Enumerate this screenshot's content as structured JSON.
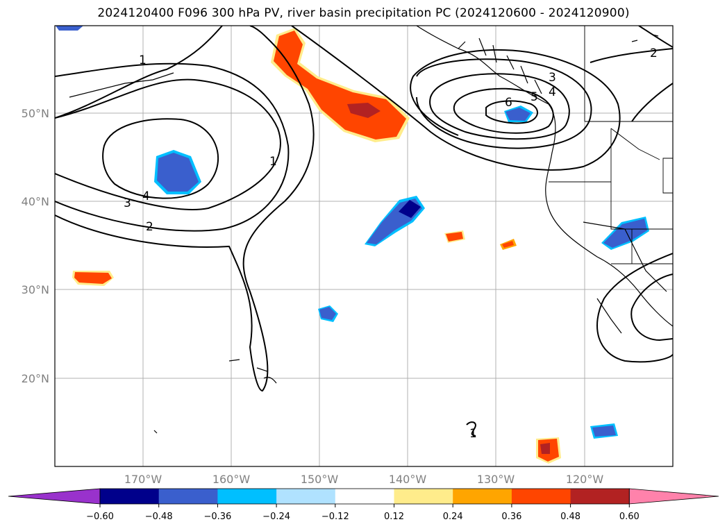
{
  "title": "2024120400 F096 300 hPa PV, river basin precipitation PC (2024120600 - 2024120900)",
  "lat_labels": [
    "50°N",
    "40°N",
    "30°N",
    "20°N"
  ],
  "lon_labels": [
    "170°W",
    "160°W",
    "150°W",
    "140°W",
    "130°W",
    "120°W"
  ],
  "contour_labels": [
    "1",
    "2",
    "3",
    "4",
    "2",
    "3",
    "4",
    "5",
    "6",
    "1",
    "1"
  ],
  "colorbar": {
    "ticks": [
      "−0.60",
      "−0.48",
      "−0.36",
      "−0.24",
      "−0.12",
      "0.12",
      "0.24",
      "0.36",
      "0.48",
      "0.60"
    ],
    "colors": [
      "#9932cc",
      "#00008b",
      "#3a5fcd",
      "#00bfff",
      "#b0e2ff",
      "#ffffff",
      "#ffec8b",
      "#ffa500",
      "#ff4500",
      "#b22222",
      "#ff82ab"
    ]
  }
}
